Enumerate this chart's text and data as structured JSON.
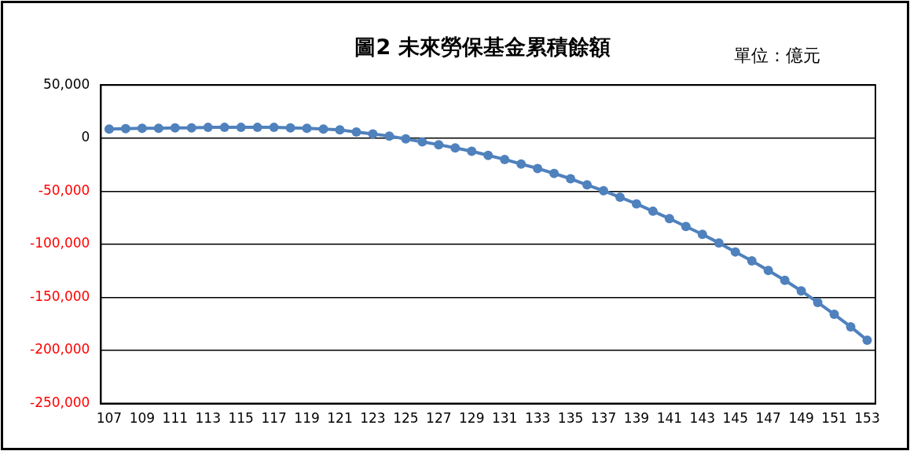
{
  "chart_data": {
    "type": "line",
    "title": "圖2  未來勞保基金累積餘額",
    "annotations": [
      "單位：億元"
    ],
    "categories": [
      "107",
      null,
      "109",
      null,
      "111",
      null,
      "113",
      null,
      "115",
      null,
      "117",
      null,
      "119",
      null,
      "121",
      null,
      "123",
      null,
      "125",
      null,
      "127",
      null,
      "129",
      null,
      "131",
      null,
      "133",
      null,
      "135",
      null,
      "137",
      null,
      "139",
      null,
      "141",
      null,
      "143",
      null,
      "145",
      null,
      "147",
      null,
      "149",
      null,
      "151",
      null,
      "153"
    ],
    "series": [
      {
        "color": "#4f81bd",
        "values": [
          8500,
          8900,
          9300,
          9300,
          9700,
          9700,
          10100,
          10100,
          10100,
          10100,
          10100,
          9700,
          9300,
          8500,
          7700,
          5800,
          3900,
          1900,
          -800,
          -3500,
          -6200,
          -9300,
          -12400,
          -16300,
          -20100,
          -24400,
          -28600,
          -33300,
          -38300,
          -44100,
          -49500,
          -55700,
          -61900,
          -68900,
          -75800,
          -83200,
          -90600,
          -98700,
          -107200,
          -115700,
          -124600,
          -133900,
          -143900,
          -154800,
          -166000,
          -177700,
          -190400
        ]
      }
    ],
    "ylim": [
      -250000,
      50000
    ],
    "yticks": [
      {
        "value": -250000,
        "label": "-250,000"
      },
      {
        "value": -200000,
        "label": "-200,000"
      },
      {
        "value": -150000,
        "label": "-150,000"
      },
      {
        "value": -100000,
        "label": "-100,000"
      },
      {
        "value": -50000,
        "label": "-50,000"
      },
      0,
      {
        "value": 50000,
        "label": "50,000"
      }
    ],
    "grid": "y",
    "legend": false,
    "marker": "circle",
    "line_style": "solid"
  }
}
